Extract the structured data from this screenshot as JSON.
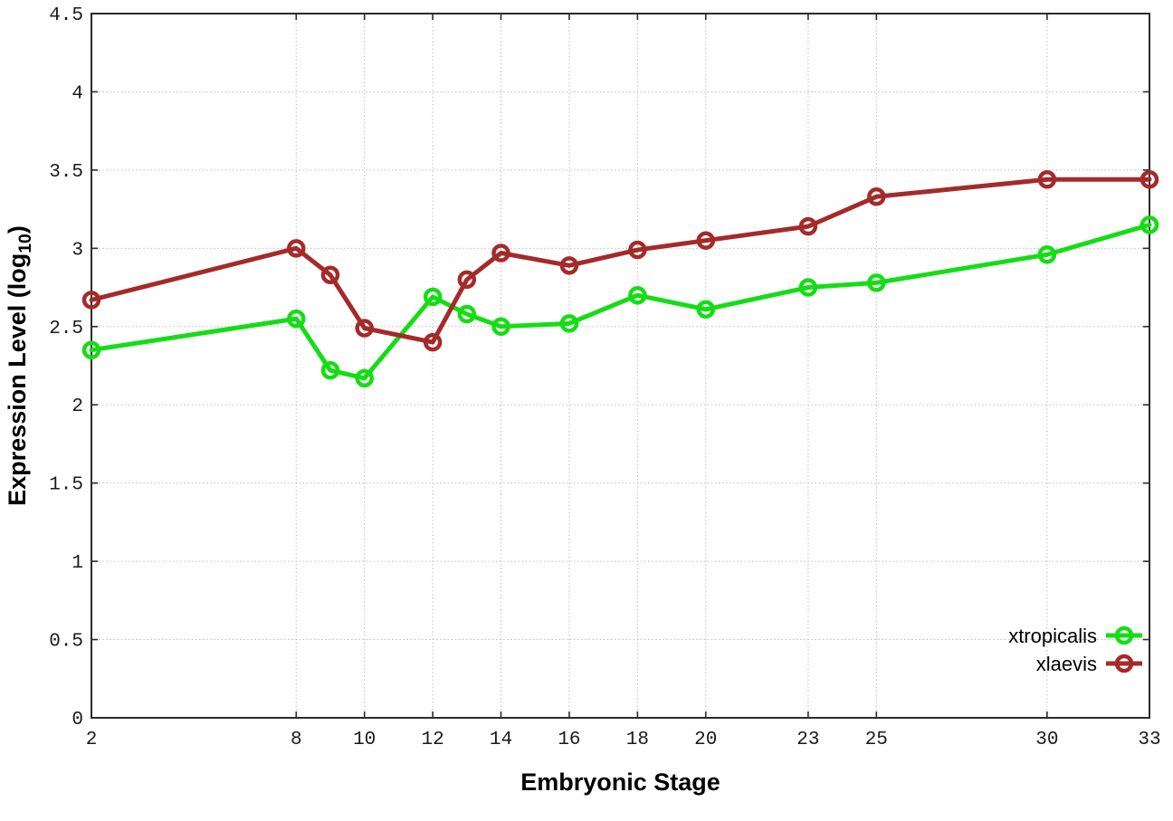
{
  "chart_data": {
    "type": "line",
    "title": "",
    "xlabel": "Embryonic Stage",
    "ylabel": "Expression Level (log10)",
    "ylabel_parts": {
      "main": "Expression Level (log",
      "sub": "10",
      "end": ")"
    },
    "x": [
      2,
      8,
      9,
      10,
      12,
      13,
      14,
      16,
      18,
      20,
      23,
      25,
      30,
      33
    ],
    "series": [
      {
        "name": "xtropicalis",
        "color": "#15dd15",
        "values": [
          2.35,
          2.55,
          2.22,
          2.17,
          2.69,
          2.58,
          2.5,
          2.52,
          2.7,
          2.61,
          2.75,
          2.78,
          2.96,
          3.15
        ]
      },
      {
        "name": "xlaevis",
        "color": "#a52a2a",
        "values": [
          2.67,
          3.0,
          2.83,
          2.49,
          2.4,
          2.8,
          2.97,
          2.89,
          2.99,
          3.05,
          3.14,
          3.33,
          3.44,
          3.44
        ]
      }
    ],
    "xlim": [
      2,
      33
    ],
    "ylim": [
      0,
      4.5
    ],
    "xtick_labels": [
      "2",
      "8",
      "10",
      "12",
      "14",
      "16",
      "18",
      "20",
      "23",
      "25",
      "30",
      "33"
    ],
    "ytick_labels": [
      "0",
      "0.5",
      "1",
      "1.5",
      "2",
      "2.5",
      "3",
      "3.5",
      "4",
      "4.5"
    ],
    "grid": true,
    "legend_position": "inside-bottom-right",
    "marker": "open-circle",
    "line_style": "solid",
    "colors": {
      "border": "#2b2b2b",
      "grid": "#bdbdbd",
      "tick": "#2b2b2b",
      "tick_text": "#1a1a1a",
      "background": "#ffffff"
    }
  }
}
